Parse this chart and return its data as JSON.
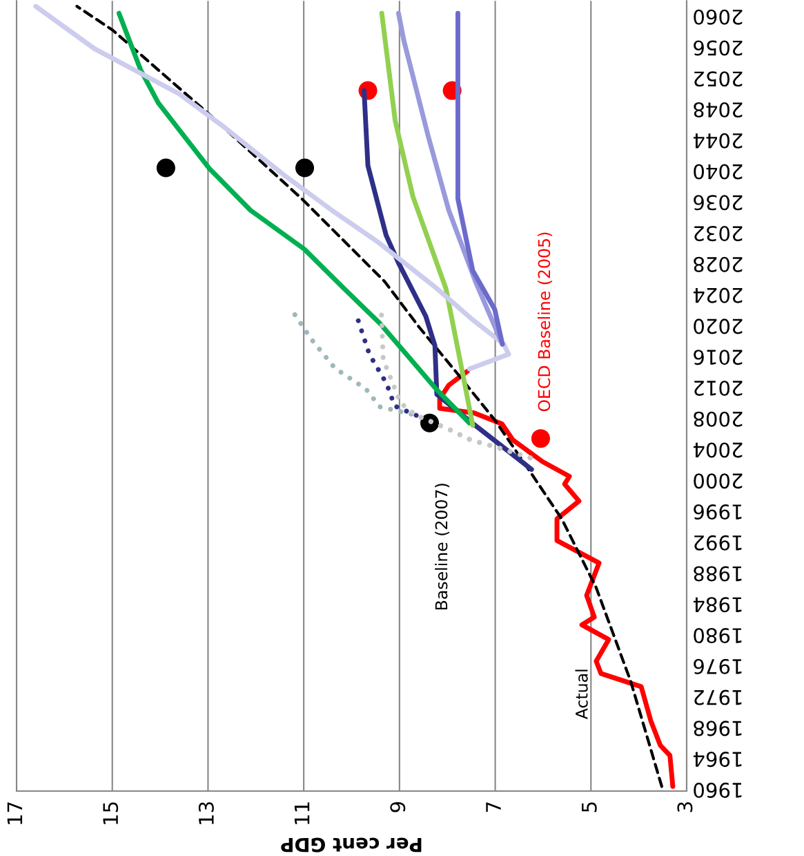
{
  "chart_data": {
    "type": "line",
    "orientation": "horizontal",
    "xlabel": "Per cent GDP",
    "xlim": [
      17,
      3
    ],
    "xticks": [
      17,
      15,
      13,
      11,
      9,
      7,
      5,
      3
    ],
    "ylim": [
      1959.4,
      2061.6
    ],
    "yticks": [
      1960,
      1964,
      1968,
      1972,
      1976,
      1980,
      1984,
      1988,
      1992,
      1996,
      2000,
      2004,
      2008,
      2012,
      2016,
      2020,
      2024,
      2028,
      2032,
      2036,
      2040,
      2044,
      2048,
      2052,
      2056,
      2060
    ],
    "grid": "x",
    "legend": false,
    "series": [
      {
        "name": "Actual",
        "color": "#ff0000",
        "x": [
          1960,
          1964,
          1965.3,
          1968.5,
          1972.9,
          1974.6,
          1976.2,
          1979,
          1980.9,
          1981.9,
          1984.7,
          1988.9,
          1991.8,
          1994.6,
          1996.9,
          1999.1,
          2000.1,
          2002,
          2004.8,
          2006.9,
          2008.3,
          2008.9,
          2010.1,
          2011.9,
          2013.7
        ],
        "values": [
          3.29,
          3.35,
          3.55,
          3.75,
          3.95,
          4.79,
          4.89,
          4.63,
          5.19,
          4.93,
          5.09,
          4.83,
          5.71,
          5.71,
          5.25,
          5.55,
          5.45,
          6.01,
          6.63,
          6.86,
          7.44,
          8.16,
          8.16,
          7.97,
          7.58
        ]
      },
      {
        "color": "#000000",
        "line_style": "dashed",
        "x": [
          1960,
          1973.6,
          1985.7,
          1994.6,
          2000.7,
          2007.4,
          2013.7,
          2019.4,
          2025.3,
          2036,
          2046.9,
          2057.8,
          2060.9
        ],
        "values": [
          3.52,
          4.17,
          4.89,
          5.61,
          6.27,
          7.01,
          7.83,
          8.59,
          9.31,
          11.04,
          12.97,
          14.99,
          15.74
        ]
      },
      {
        "color": "#2e3087",
        "x": [
          2001,
          2007.1,
          2010.7,
          2017,
          2020.8,
          2027.7,
          2031.3,
          2040.3,
          2050
        ],
        "values": [
          6.24,
          7.5,
          8.22,
          8.26,
          8.45,
          9.02,
          9.28,
          9.66,
          9.74
        ]
      },
      {
        "color": "#00b050",
        "x": [
          2007,
          2011.3,
          2019.9,
          2024.4,
          2029.5,
          2034.5,
          2039.9,
          2048.4,
          2052.7,
          2060
        ],
        "values": [
          7.54,
          8.22,
          9.41,
          10.16,
          10.99,
          12.11,
          12.97,
          14.04,
          14.41,
          14.86
        ]
      },
      {
        "color": "#92d050",
        "x": [
          2006.7,
          2013.4,
          2024.4,
          2036.3,
          2046.1,
          2060
        ],
        "values": [
          7.47,
          7.68,
          8.03,
          8.72,
          9.09,
          9.37
        ]
      },
      {
        "color": "#ccccee",
        "x": [
          2014,
          2015.9,
          2017.2,
          2020.5,
          2024.4,
          2030.5,
          2034.5,
          2039.1,
          2045.3,
          2049.6,
          2055.4,
          2060.9
        ],
        "values": [
          7.54,
          6.72,
          6.82,
          7.5,
          8.22,
          9.47,
          10.41,
          11.42,
          12.67,
          13.61,
          15.37,
          16.6
        ]
      },
      {
        "color": "#9999dd",
        "x": [
          2017.2,
          2025.1,
          2034.5,
          2044.1,
          2056.5,
          2060
        ],
        "values": [
          6.85,
          7.4,
          7.97,
          8.4,
          8.91,
          9.02
        ]
      },
      {
        "color": "#6b6bcc",
        "x": [
          2017.2,
          2021.7,
          2026.7,
          2036,
          2060
        ],
        "values": [
          6.85,
          7.01,
          7.47,
          7.78,
          7.78
        ]
      },
      {
        "color": "#9fb8bc",
        "line_style": "dotted",
        "x": [
          2002.5,
          2003.9,
          2004.8,
          2006.2,
          2008,
          2009.1,
          2011.4,
          2014.1,
          2017.9,
          2021.7
        ],
        "values": [
          6.27,
          6.99,
          7.51,
          7.97,
          8.65,
          9.41,
          9.7,
          10.35,
          10.85,
          11.26
        ]
      },
      {
        "color": "#2e3087",
        "line_style": "dotted",
        "x": [
          2008,
          2009.2,
          2012.1,
          2015.9,
          2020.4
        ],
        "values": [
          8.65,
          9.1,
          9.27,
          9.63,
          9.87
        ]
      },
      {
        "color": "#c8c8c8",
        "line_style": "dotted",
        "x": [
          2002.5,
          2003.9,
          2004.8,
          2006.2,
          2008,
          2009.6,
          2012.3,
          2015.2,
          2021.6
        ],
        "values": [
          6.27,
          6.99,
          7.51,
          7.97,
          8.65,
          8.98,
          9.15,
          9.34,
          9.38
        ]
      },
      {
        "name": "Baseline (2007)",
        "type": "scatter",
        "marker": "circle",
        "color": "#000000",
        "x": [
          2007,
          2040,
          2040
        ],
        "values": [
          8.37,
          13.88,
          10.98
        ]
      },
      {
        "name": "OECD Baseline (2005)",
        "type": "scatter",
        "marker": "circle",
        "color": "#ff0000",
        "x": [
          2005,
          2050,
          2050
        ],
        "values": [
          6.05,
          9.66,
          7.9
        ]
      }
    ]
  }
}
